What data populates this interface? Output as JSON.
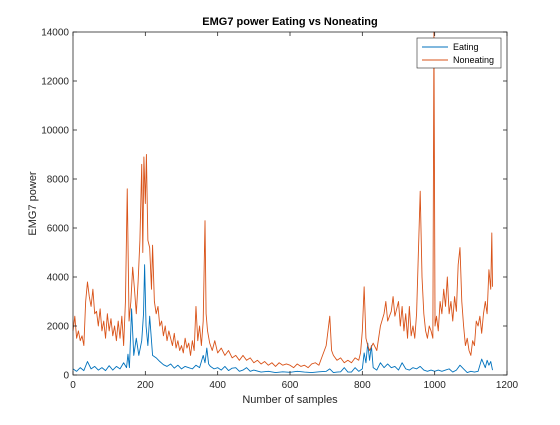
{
  "chart_data": {
    "type": "line",
    "title": "EMG7 power Eating vs Noneating",
    "xlabel": "Number of samples",
    "ylabel": "EMG7 power",
    "xlim": [
      0,
      1200
    ],
    "ylim": [
      0,
      14000
    ],
    "xticks": [
      0,
      200,
      400,
      600,
      800,
      1000,
      1200
    ],
    "yticks": [
      0,
      2000,
      4000,
      6000,
      8000,
      10000,
      12000,
      14000
    ],
    "xtick_labels": [
      "0",
      "200",
      "400",
      "600",
      "800",
      "1000",
      "1200"
    ],
    "ytick_labels": [
      "0",
      "2000",
      "4000",
      "6000",
      "8000",
      "10000",
      "12000",
      "14000"
    ],
    "grid": false,
    "legend_position": "top-right",
    "x_end": 1160,
    "series": [
      {
        "name": "Eating",
        "color": "#0072BD",
        "points": [
          [
            0,
            250
          ],
          [
            10,
            150
          ],
          [
            20,
            300
          ],
          [
            30,
            180
          ],
          [
            40,
            550
          ],
          [
            50,
            250
          ],
          [
            60,
            350
          ],
          [
            70,
            200
          ],
          [
            80,
            300
          ],
          [
            90,
            180
          ],
          [
            100,
            380
          ],
          [
            110,
            200
          ],
          [
            120,
            350
          ],
          [
            130,
            250
          ],
          [
            140,
            500
          ],
          [
            148,
            300
          ],
          [
            152,
            850
          ],
          [
            156,
            300
          ],
          [
            162,
            2700
          ],
          [
            168,
            800
          ],
          [
            175,
            1500
          ],
          [
            182,
            800
          ],
          [
            190,
            1400
          ],
          [
            195,
            2500
          ],
          [
            198,
            4500
          ],
          [
            202,
            2000
          ],
          [
            207,
            1200
          ],
          [
            212,
            2400
          ],
          [
            220,
            800
          ],
          [
            230,
            700
          ],
          [
            240,
            550
          ],
          [
            250,
            420
          ],
          [
            260,
            350
          ],
          [
            270,
            450
          ],
          [
            280,
            280
          ],
          [
            290,
            400
          ],
          [
            300,
            250
          ],
          [
            310,
            350
          ],
          [
            320,
            300
          ],
          [
            330,
            250
          ],
          [
            340,
            400
          ],
          [
            350,
            300
          ],
          [
            360,
            800
          ],
          [
            365,
            500
          ],
          [
            370,
            1100
          ],
          [
            375,
            450
          ],
          [
            380,
            350
          ],
          [
            390,
            250
          ],
          [
            400,
            300
          ],
          [
            410,
            200
          ],
          [
            420,
            350
          ],
          [
            430,
            180
          ],
          [
            440,
            280
          ],
          [
            450,
            300
          ],
          [
            460,
            150
          ],
          [
            470,
            200
          ],
          [
            480,
            300
          ],
          [
            490,
            150
          ],
          [
            500,
            200
          ],
          [
            520,
            120
          ],
          [
            540,
            150
          ],
          [
            560,
            100
          ],
          [
            580,
            130
          ],
          [
            600,
            110
          ],
          [
            620,
            150
          ],
          [
            640,
            120
          ],
          [
            660,
            100
          ],
          [
            680,
            130
          ],
          [
            700,
            150
          ],
          [
            710,
            250
          ],
          [
            720,
            100
          ],
          [
            730,
            120
          ],
          [
            740,
            130
          ],
          [
            750,
            300
          ],
          [
            760,
            120
          ],
          [
            770,
            120
          ],
          [
            780,
            300
          ],
          [
            790,
            150
          ],
          [
            800,
            250
          ],
          [
            805,
            900
          ],
          [
            810,
            500
          ],
          [
            815,
            1300
          ],
          [
            820,
            600
          ],
          [
            825,
            1200
          ],
          [
            830,
            300
          ],
          [
            840,
            200
          ],
          [
            850,
            500
          ],
          [
            860,
            300
          ],
          [
            870,
            450
          ],
          [
            880,
            300
          ],
          [
            890,
            350
          ],
          [
            900,
            200
          ],
          [
            910,
            500
          ],
          [
            920,
            250
          ],
          [
            930,
            200
          ],
          [
            940,
            300
          ],
          [
            950,
            250
          ],
          [
            960,
            350
          ],
          [
            970,
            200
          ],
          [
            980,
            150
          ],
          [
            990,
            200
          ],
          [
            1000,
            150
          ],
          [
            1010,
            200
          ],
          [
            1020,
            150
          ],
          [
            1030,
            200
          ],
          [
            1040,
            250
          ],
          [
            1050,
            120
          ],
          [
            1060,
            200
          ],
          [
            1070,
            400
          ],
          [
            1080,
            250
          ],
          [
            1090,
            100
          ],
          [
            1100,
            150
          ],
          [
            1110,
            120
          ],
          [
            1120,
            150
          ],
          [
            1130,
            650
          ],
          [
            1140,
            300
          ],
          [
            1145,
            600
          ],
          [
            1150,
            400
          ],
          [
            1155,
            550
          ],
          [
            1160,
            200
          ]
        ]
      },
      {
        "name": "Noneating",
        "color": "#D95319",
        "points": [
          [
            0,
            1800
          ],
          [
            5,
            2400
          ],
          [
            10,
            1500
          ],
          [
            15,
            1800
          ],
          [
            20,
            1400
          ],
          [
            25,
            1600
          ],
          [
            30,
            1200
          ],
          [
            35,
            3000
          ],
          [
            40,
            3800
          ],
          [
            45,
            3200
          ],
          [
            50,
            2800
          ],
          [
            55,
            3500
          ],
          [
            60,
            2500
          ],
          [
            65,
            2600
          ],
          [
            70,
            2000
          ],
          [
            75,
            2700
          ],
          [
            80,
            1800
          ],
          [
            85,
            2200
          ],
          [
            90,
            1500
          ],
          [
            95,
            2500
          ],
          [
            100,
            1800
          ],
          [
            105,
            2300
          ],
          [
            110,
            1600
          ],
          [
            115,
            2000
          ],
          [
            120,
            1400
          ],
          [
            125,
            2200
          ],
          [
            130,
            1500
          ],
          [
            135,
            2400
          ],
          [
            140,
            1200
          ],
          [
            145,
            3000
          ],
          [
            150,
            7600
          ],
          [
            155,
            2200
          ],
          [
            160,
            3000
          ],
          [
            165,
            4400
          ],
          [
            170,
            3500
          ],
          [
            175,
            2500
          ],
          [
            180,
            3800
          ],
          [
            185,
            5500
          ],
          [
            190,
            8600
          ],
          [
            193,
            5000
          ],
          [
            196,
            8900
          ],
          [
            200,
            7000
          ],
          [
            203,
            9000
          ],
          [
            207,
            5500
          ],
          [
            212,
            5200
          ],
          [
            217,
            3500
          ],
          [
            220,
            5300
          ],
          [
            225,
            3000
          ],
          [
            230,
            2500
          ],
          [
            235,
            2800
          ],
          [
            240,
            2000
          ],
          [
            245,
            2200
          ],
          [
            250,
            1600
          ],
          [
            255,
            2000
          ],
          [
            260,
            1400
          ],
          [
            265,
            1800
          ],
          [
            270,
            1500
          ],
          [
            275,
            1200
          ],
          [
            280,
            1700
          ],
          [
            285,
            1100
          ],
          [
            290,
            1400
          ],
          [
            295,
            1000
          ],
          [
            300,
            1200
          ],
          [
            305,
            900
          ],
          [
            310,
            1500
          ],
          [
            315,
            1100
          ],
          [
            320,
            1300
          ],
          [
            325,
            800
          ],
          [
            330,
            1400
          ],
          [
            335,
            1000
          ],
          [
            340,
            2800
          ],
          [
            345,
            1400
          ],
          [
            350,
            2000
          ],
          [
            355,
            1200
          ],
          [
            360,
            2200
          ],
          [
            365,
            6300
          ],
          [
            368,
            2500
          ],
          [
            372,
            1800
          ],
          [
            378,
            1300
          ],
          [
            385,
            1000
          ],
          [
            392,
            1400
          ],
          [
            400,
            900
          ],
          [
            410,
            1100
          ],
          [
            420,
            800
          ],
          [
            430,
            1000
          ],
          [
            440,
            700
          ],
          [
            450,
            800
          ],
          [
            460,
            600
          ],
          [
            470,
            800
          ],
          [
            480,
            600
          ],
          [
            490,
            700
          ],
          [
            500,
            500
          ],
          [
            510,
            600
          ],
          [
            520,
            450
          ],
          [
            530,
            550
          ],
          [
            540,
            400
          ],
          [
            550,
            500
          ],
          [
            560,
            350
          ],
          [
            570,
            500
          ],
          [
            580,
            400
          ],
          [
            590,
            450
          ],
          [
            600,
            400
          ],
          [
            610,
            300
          ],
          [
            620,
            450
          ],
          [
            630,
            350
          ],
          [
            640,
            400
          ],
          [
            650,
            300
          ],
          [
            660,
            450
          ],
          [
            670,
            500
          ],
          [
            680,
            400
          ],
          [
            690,
            800
          ],
          [
            700,
            1200
          ],
          [
            705,
            1800
          ],
          [
            710,
            2400
          ],
          [
            715,
            1000
          ],
          [
            720,
            800
          ],
          [
            730,
            600
          ],
          [
            740,
            700
          ],
          [
            750,
            500
          ],
          [
            760,
            600
          ],
          [
            770,
            500
          ],
          [
            780,
            700
          ],
          [
            790,
            600
          ],
          [
            795,
            900
          ],
          [
            800,
            1800
          ],
          [
            805,
            3600
          ],
          [
            810,
            1500
          ],
          [
            815,
            1200
          ],
          [
            820,
            1000
          ],
          [
            830,
            1300
          ],
          [
            840,
            1000
          ],
          [
            850,
            2000
          ],
          [
            860,
            2500
          ],
          [
            865,
            3000
          ],
          [
            870,
            2200
          ],
          [
            880,
            2600
          ],
          [
            885,
            3200
          ],
          [
            890,
            2400
          ],
          [
            900,
            3000
          ],
          [
            905,
            2000
          ],
          [
            910,
            2800
          ],
          [
            915,
            1800
          ],
          [
            920,
            2500
          ],
          [
            925,
            1500
          ],
          [
            930,
            2800
          ],
          [
            935,
            1600
          ],
          [
            940,
            2000
          ],
          [
            945,
            1500
          ],
          [
            950,
            2500
          ],
          [
            955,
            5000
          ],
          [
            960,
            7500
          ],
          [
            965,
            4000
          ],
          [
            970,
            2500
          ],
          [
            975,
            1800
          ],
          [
            980,
            1500
          ],
          [
            985,
            2000
          ],
          [
            990,
            1800
          ],
          [
            995,
            1500
          ],
          [
            998,
            14000
          ],
          [
            1001,
            2000
          ],
          [
            1005,
            2400
          ],
          [
            1010,
            1800
          ],
          [
            1015,
            3000
          ],
          [
            1020,
            2500
          ],
          [
            1025,
            3500
          ],
          [
            1030,
            2800
          ],
          [
            1035,
            4000
          ],
          [
            1040,
            2500
          ],
          [
            1045,
            3000
          ],
          [
            1050,
            2200
          ],
          [
            1055,
            3200
          ],
          [
            1060,
            2600
          ],
          [
            1065,
            4500
          ],
          [
            1070,
            5200
          ],
          [
            1075,
            3000
          ],
          [
            1080,
            2000
          ],
          [
            1085,
            1200
          ],
          [
            1090,
            1500
          ],
          [
            1095,
            1000
          ],
          [
            1100,
            800
          ],
          [
            1105,
            1400
          ],
          [
            1110,
            1200
          ],
          [
            1115,
            2200
          ],
          [
            1120,
            2000
          ],
          [
            1125,
            2400
          ],
          [
            1130,
            1700
          ],
          [
            1135,
            2500
          ],
          [
            1140,
            3000
          ],
          [
            1145,
            2500
          ],
          [
            1150,
            4300
          ],
          [
            1155,
            3500
          ],
          [
            1158,
            5800
          ],
          [
            1160,
            3600
          ]
        ]
      }
    ]
  }
}
